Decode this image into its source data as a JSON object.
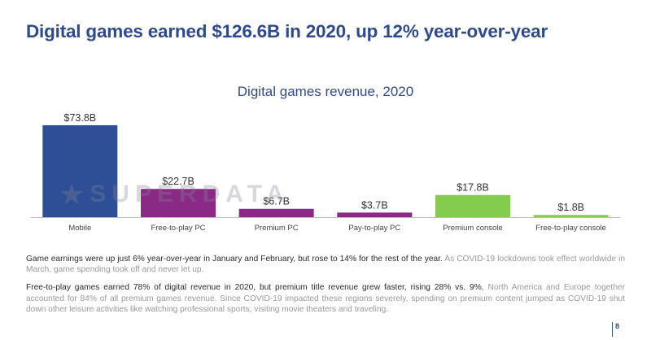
{
  "slide": {
    "title": "Digital games earned $126.6B in 2020, up 12% year-over-year",
    "page_number": "8"
  },
  "watermark": {
    "text": "SUPERDATA",
    "icon": "star-icon"
  },
  "chart_data": {
    "type": "bar",
    "title": "Digital games revenue, 2020",
    "categories": [
      "Mobile",
      "Free-to-play PC",
      "Premium PC",
      "Pay-to-play PC",
      "Premium console",
      "Free-to-play console"
    ],
    "values": [
      73.8,
      22.7,
      6.7,
      3.7,
      17.8,
      1.8
    ],
    "value_labels": [
      "$73.8B",
      "$22.7B",
      "$6.7B",
      "$3.7B",
      "$17.8B",
      "$1.8B"
    ],
    "colors": [
      "#2e4f95",
      "#8a2a86",
      "#8a2a86",
      "#8a2a86",
      "#84cc4d",
      "#84cc4d"
    ],
    "xlabel": "",
    "ylabel": "",
    "ylim": [
      0,
      73.8
    ],
    "grid": false,
    "legend": "none"
  },
  "notes": [
    {
      "lead": "Game earnings were up just 6% year-over-year in January and February, but rose to 14% for the rest of the year.",
      "rest": " As COVID-19 lockdowns took effect worldwide in March, game spending took off and never let up."
    },
    {
      "lead": "Free-to-play games earned 78% of digital revenue in 2020, but premium title revenue grew faster, rising 28% vs. 9%.",
      "rest": " North America and Europe together accounted for 84% of all premium games revenue. Since COVID-19 impacted these regions severely, spending on premium content jumped as COVID-19 shut down other leisure activities like watching professional sports, visiting movie theaters and traveling."
    }
  ]
}
